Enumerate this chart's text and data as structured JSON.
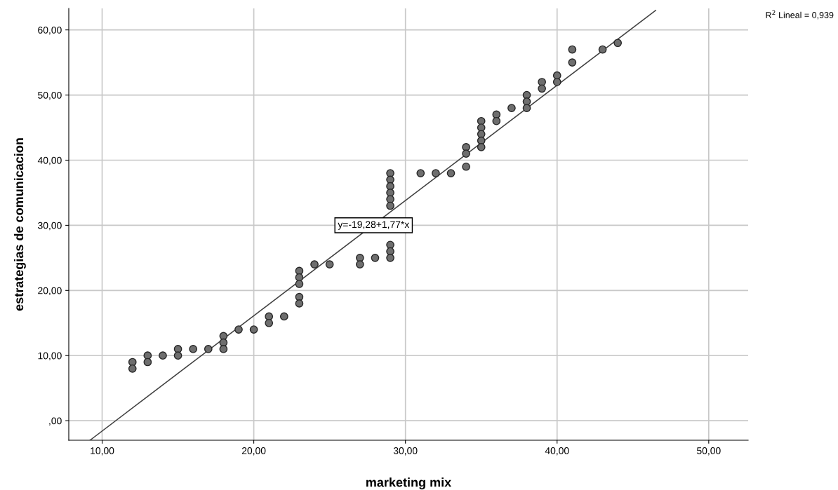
{
  "chart_data": {
    "type": "scatter",
    "xlabel": "marketing mix",
    "ylabel": "estrategias de comunicacion",
    "xlim": [
      7.8,
      52.6
    ],
    "ylim": [
      -3.0,
      63.3
    ],
    "xticks": [
      {
        "value": 10,
        "label": "10,00"
      },
      {
        "value": 20,
        "label": "20,00"
      },
      {
        "value": 30,
        "label": "30,00"
      },
      {
        "value": 40,
        "label": "40,00"
      },
      {
        "value": 50,
        "label": "50,00"
      }
    ],
    "yticks": [
      {
        "value": 0,
        "label": ",00"
      },
      {
        "value": 10,
        "label": "10,00"
      },
      {
        "value": 20,
        "label": "20,00"
      },
      {
        "value": 30,
        "label": "30,00"
      },
      {
        "value": 40,
        "label": "40,00"
      },
      {
        "value": 50,
        "label": "50,00"
      },
      {
        "value": 60,
        "label": "60,00"
      }
    ],
    "grid": true,
    "legend": false,
    "series": [
      {
        "marker": "circle",
        "color": "#6e6e6e",
        "x": [
          12,
          12,
          13,
          13,
          14,
          15,
          15,
          16,
          17,
          18,
          18,
          18,
          19,
          20,
          21,
          21,
          22,
          23,
          23,
          23,
          23,
          23,
          24,
          25,
          27,
          27,
          28,
          29,
          29,
          29,
          29,
          29,
          29,
          29,
          29,
          29,
          31,
          32,
          33,
          34,
          34,
          34,
          35,
          35,
          35,
          35,
          35,
          36,
          36,
          37,
          38,
          38,
          38,
          39,
          39,
          40,
          40,
          41,
          41,
          43,
          44
        ],
        "values": [
          9,
          8,
          10,
          9,
          10,
          11,
          10,
          11,
          11,
          13,
          12,
          11,
          14,
          14,
          16,
          15,
          16,
          23,
          22,
          21,
          19,
          18,
          24,
          24,
          25,
          24,
          25,
          38,
          37,
          36,
          35,
          34,
          33,
          27,
          26,
          25,
          38,
          38,
          38,
          42,
          41,
          39,
          46,
          45,
          44,
          43,
          42,
          47,
          46,
          48,
          50,
          49,
          48,
          52,
          51,
          53,
          52,
          57,
          55,
          57,
          58
        ]
      },
      {
        "type": "line",
        "color": "#404040",
        "x": [
          9.2,
          46.5
        ],
        "values": [
          -3.0,
          63.0
        ]
      }
    ],
    "annotations": [
      {
        "text": "y=-19,28+1,77*x",
        "x": 27.9,
        "y": 30
      },
      "R$^{2}$ Lineal = 0,939"
    ]
  }
}
